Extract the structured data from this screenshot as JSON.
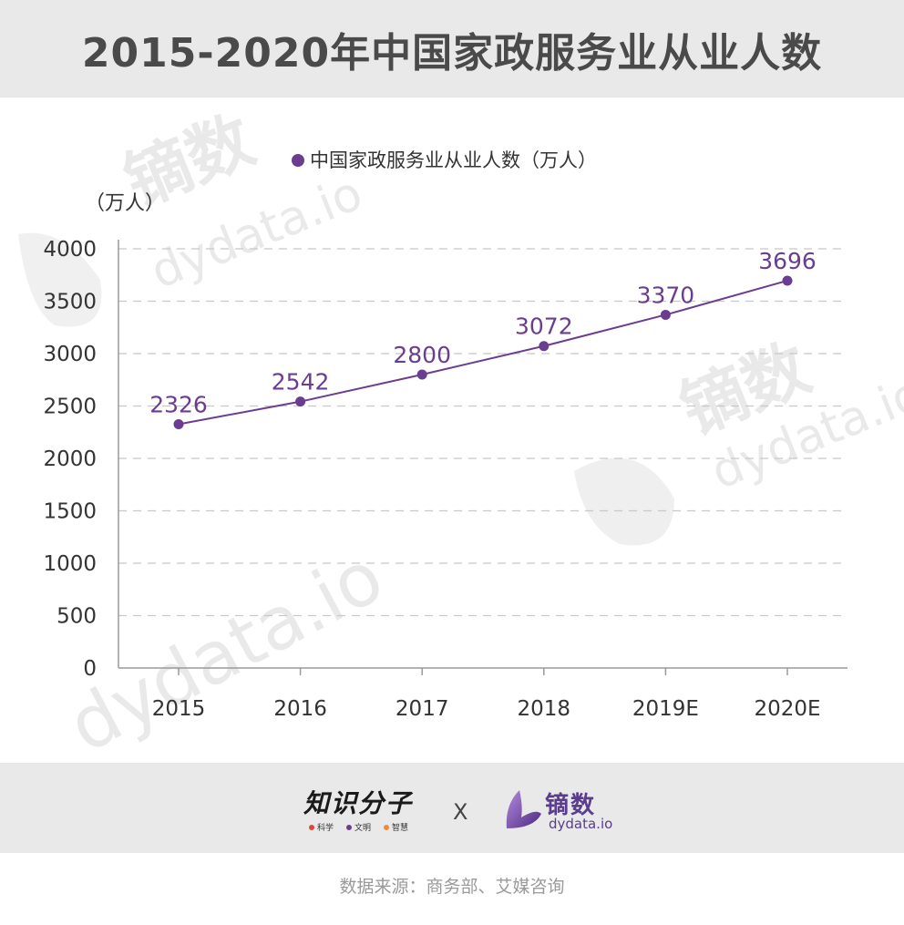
{
  "header": {
    "title": "2015-2020年中国家政服务业从业人数"
  },
  "chart_data": {
    "type": "line",
    "categories": [
      "2015",
      "2016",
      "2017",
      "2018",
      "2019E",
      "2020E"
    ],
    "series": [
      {
        "name": "中国家政服务业从业人数（万人）",
        "values": [
          2326,
          2542,
          2800,
          3072,
          3370,
          3696
        ]
      }
    ],
    "ylabel": "（万人）",
    "ylim": [
      0,
      4000
    ],
    "yticks": [
      0,
      500,
      1000,
      1500,
      2000,
      2500,
      3000,
      3500,
      4000
    ],
    "grid": true,
    "legend": "top-center",
    "data_labels": true,
    "line_color": "#6b3d91",
    "label_color": "#6b3d91"
  },
  "watermark": {
    "brand_cn": "镝数",
    "brand_en": "dydata.io"
  },
  "footer": {
    "left_logo": "知识分子",
    "left_tags": [
      {
        "label": "科学",
        "color": "#e0453a"
      },
      {
        "label": "文明",
        "color": "#6b3d91"
      },
      {
        "label": "智慧",
        "color": "#f08a3c"
      }
    ],
    "separator": "X",
    "right_logo_cn": "镝数",
    "right_logo_en": "dydata.io",
    "right_logo_icon": "butterfly-icon"
  },
  "source": "数据来源：商务部、艾媒咨询"
}
